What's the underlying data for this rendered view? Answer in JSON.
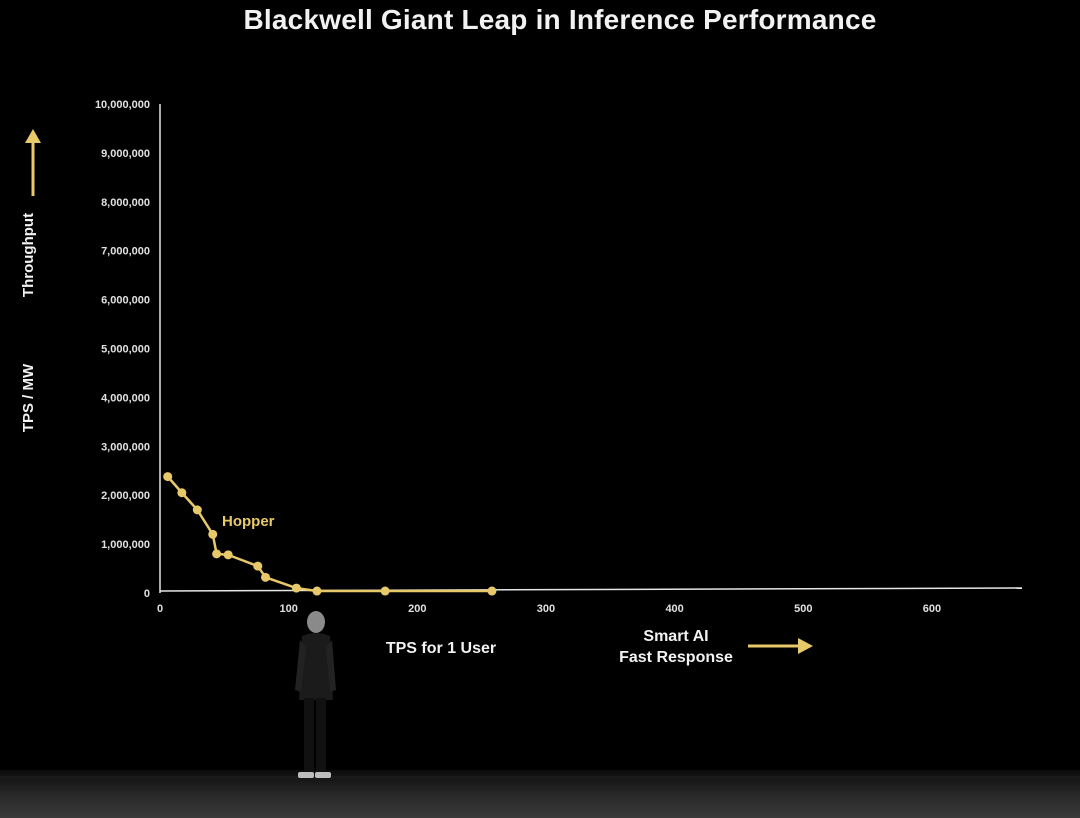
{
  "chart_data": {
    "type": "line",
    "title": "Blackwell Giant Leap in Inference Performance",
    "ylabel_upper": "Throughput",
    "ylabel_lower": "TPS / MW",
    "xlabel": "TPS for 1 User",
    "xlabel_right_line1": "Smart AI",
    "xlabel_right_line2": "Fast Response",
    "xlim": [
      0,
      670
    ],
    "ylim": [
      0,
      10000000
    ],
    "x_ticks": [
      0,
      100,
      200,
      300,
      400,
      500,
      600
    ],
    "x_tick_labels": [
      "0",
      "100",
      "200",
      "300",
      "400",
      "500",
      "600"
    ],
    "y_ticks": [
      0,
      1000000,
      2000000,
      3000000,
      4000000,
      5000000,
      6000000,
      7000000,
      8000000,
      9000000,
      10000000
    ],
    "y_tick_labels": [
      "0",
      "1,000,000",
      "2,000,000",
      "3,000,000",
      "4,000,000",
      "5,000,000",
      "6,000,000",
      "7,000,000",
      "8,000,000",
      "9,000,000",
      "10,000,000"
    ],
    "grid": false,
    "series": [
      {
        "name": "Hopper",
        "color": "#e8c96a",
        "x": [
          6,
          17,
          29,
          41,
          44,
          53,
          76,
          82,
          106,
          122,
          175,
          258
        ],
        "y": [
          2380000,
          2050000,
          1700000,
          1200000,
          800000,
          780000,
          550000,
          320000,
          100000,
          40000,
          40000,
          40000
        ]
      }
    ]
  },
  "colors": {
    "background": "#000000",
    "axis": "#e6e6e6",
    "series": "#e8c96a",
    "arrow_y": "#e8c96a",
    "arrow_x": "#e8c96a"
  }
}
